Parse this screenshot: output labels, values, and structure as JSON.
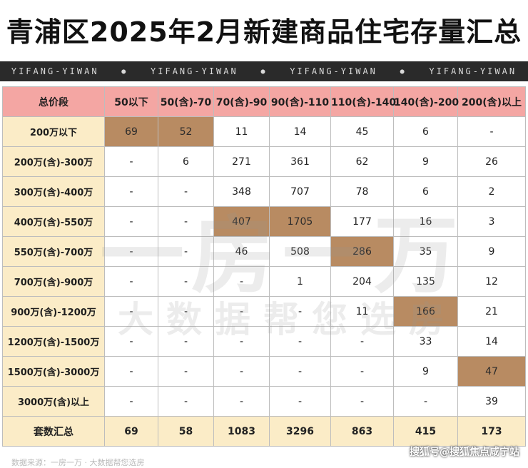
{
  "title": "青浦区2025年2月新建商品住宅存量汇总",
  "banner": [
    "YIFANG-YIWAN",
    "YIFANG-YIWAN",
    "YIFANG-YIWAN",
    "YIFANG-YIWAN"
  ],
  "watermark": {
    "line1": "一房一万",
    "line2": "大数据帮您选房"
  },
  "credit": "搜狐号@搜狐焦点咸宁站",
  "footer_faint": "数据来源：一房一万 · 大数据帮您选房",
  "colors": {
    "header": "#f4a6a3",
    "row_header": "#fbecc7",
    "highlight": "#b88b62",
    "banner": "#2a2a2a"
  },
  "chart_data": {
    "type": "table",
    "title": "青浦区2025年2月新建商品住宅存量汇总",
    "corner_label": "总价段",
    "columns": [
      "50以下",
      "50(含)-70",
      "70(含)-90",
      "90(含)-110",
      "110(含)-140",
      "140(含)-200",
      "200(含)以上"
    ],
    "rows": [
      {
        "label": "200万以下",
        "values": [
          "69",
          "52",
          "11",
          "14",
          "45",
          "6",
          "-"
        ],
        "highlight": [
          0,
          1
        ]
      },
      {
        "label": "200万(含)-300万",
        "values": [
          "-",
          "6",
          "271",
          "361",
          "62",
          "9",
          "26"
        ],
        "highlight": []
      },
      {
        "label": "300万(含)-400万",
        "values": [
          "-",
          "-",
          "348",
          "707",
          "78",
          "6",
          "2"
        ],
        "highlight": []
      },
      {
        "label": "400万(含)-550万",
        "values": [
          "-",
          "-",
          "407",
          "1705",
          "177",
          "16",
          "3"
        ],
        "highlight": [
          2,
          3
        ]
      },
      {
        "label": "550万(含)-700万",
        "values": [
          "-",
          "-",
          "46",
          "508",
          "286",
          "35",
          "9"
        ],
        "highlight": [
          4
        ]
      },
      {
        "label": "700万(含)-900万",
        "values": [
          "-",
          "-",
          "-",
          "1",
          "204",
          "135",
          "12"
        ],
        "highlight": []
      },
      {
        "label": "900万(含)-1200万",
        "values": [
          "-",
          "-",
          "-",
          "-",
          "11",
          "166",
          "21"
        ],
        "highlight": [
          5
        ]
      },
      {
        "label": "1200万(含)-1500万",
        "values": [
          "-",
          "-",
          "-",
          "-",
          "-",
          "33",
          "14"
        ],
        "highlight": []
      },
      {
        "label": "1500万(含)-3000万",
        "values": [
          "-",
          "-",
          "-",
          "-",
          "-",
          "9",
          "47"
        ],
        "highlight": [
          6
        ]
      },
      {
        "label": "3000万(含)以上",
        "values": [
          "-",
          "-",
          "-",
          "-",
          "-",
          "-",
          "39"
        ],
        "highlight": []
      }
    ],
    "totals": {
      "label": "套数汇总",
      "values": [
        "69",
        "58",
        "1083",
        "3296",
        "863",
        "415",
        "173"
      ]
    }
  }
}
